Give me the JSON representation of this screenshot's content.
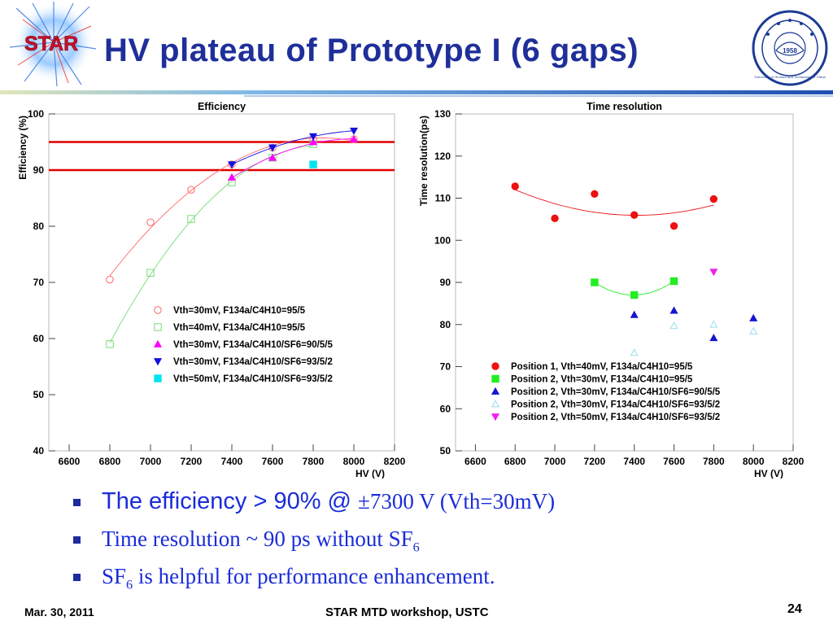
{
  "slide": {
    "title": "HV plateau of Prototype I (6 gaps)",
    "logo_text": "STAR",
    "seal_year": "1958",
    "seal_text": "University of Science and Technology of China",
    "accent": "#1f2f9a",
    "bullet_color": "#1a2cd8"
  },
  "bullets": [
    {
      "a": "The efficiency > 90% @ ",
      "b": "±7300 V (Vth=30mV)"
    },
    {
      "a": "Time resolution ~ 90 ps without SF",
      "sub": "6",
      "c": ""
    },
    {
      "a": "SF",
      "sub": "6",
      "c": " is helpful for performance enhancement."
    }
  ],
  "footer": {
    "date": "Mar. 30, 2011",
    "center": "STAR MTD workshop, USTC",
    "page": "24"
  },
  "chart_data": [
    {
      "type": "scatter",
      "title": "Efficiency",
      "xlabel": "HV (V)",
      "ylabel": "Efficiency (%)",
      "xlim": [
        6500,
        8200
      ],
      "ylim": [
        40,
        100
      ],
      "xticks": [
        6600,
        6800,
        7000,
        7200,
        7400,
        7600,
        7800,
        8000,
        8200
      ],
      "yticks": [
        40,
        50,
        60,
        70,
        80,
        90,
        100
      ],
      "grid": false,
      "legend_position": "lower-right",
      "reference_lines": [
        90,
        95
      ],
      "reference_color": "#e00000",
      "series": [
        {
          "name": "Vth=30mV, F134a/C4H10=95/5",
          "marker": "open-circle",
          "color": "#ff6666",
          "x": [
            6800,
            7000,
            7200,
            7400,
            7600,
            7800,
            8000
          ],
          "y": [
            70.5,
            80.7,
            86.5,
            91,
            94,
            95.5,
            95.5
          ],
          "fit": true
        },
        {
          "name": "Vth=40mV, F134a/C4H10=95/5",
          "marker": "open-square",
          "color": "#77dd77",
          "x": [
            6800,
            7000,
            7200,
            7400,
            7600,
            7800
          ],
          "y": [
            59,
            71.7,
            81.3,
            87.8,
            92.2,
            94.6
          ],
          "fit": true
        },
        {
          "name": "Vth=30mV, F134a/C4H10/SF6=90/5/5",
          "marker": "triangle-up",
          "color": "#ff00ff",
          "x": [
            7400,
            7600,
            7800,
            8000
          ],
          "y": [
            88.7,
            92.2,
            95,
            95.5
          ],
          "fit": true
        },
        {
          "name": "Vth=30mV, F134a/C4H10/SF6=93/5/2",
          "marker": "triangle-down",
          "color": "#1010e0",
          "x": [
            7400,
            7600,
            7800,
            8000
          ],
          "y": [
            91,
            94,
            96,
            97
          ],
          "fit": true
        },
        {
          "name": "Vth=50mV, F134a/C4H10/SF6=93/5/2",
          "marker": "square",
          "color": "#00e5f0",
          "x": [
            7800
          ],
          "y": [
            91
          ],
          "fit": false
        }
      ]
    },
    {
      "type": "scatter",
      "title": "Time resolution",
      "xlabel": "HV (V)",
      "ylabel": "Time resolution(ps)",
      "xlim": [
        6500,
        8200
      ],
      "ylim": [
        50,
        130
      ],
      "xticks": [
        6600,
        6800,
        7000,
        7200,
        7400,
        7600,
        7800,
        8000,
        8200
      ],
      "yticks": [
        50,
        60,
        70,
        80,
        90,
        100,
        110,
        120,
        130
      ],
      "grid": false,
      "legend_position": "lower-left",
      "series": [
        {
          "name": "Position 1, Vth=40mV, F134a/C4H10=95/5",
          "marker": "circle",
          "color": "#ee1111",
          "x": [
            6800,
            7000,
            7200,
            7400,
            7600,
            7800
          ],
          "y": [
            112.8,
            105.2,
            111,
            106,
            103.4,
            109.8
          ],
          "fit": true
        },
        {
          "name": "Position 2, Vth=30mV, F134a/C4H10=95/5",
          "marker": "square",
          "color": "#22ee22",
          "x": [
            7200,
            7400,
            7600
          ],
          "y": [
            90,
            87,
            90.3
          ],
          "fit": true
        },
        {
          "name": "Position 2, Vth=30mV, F134a/C4H10/SF6=90/5/5",
          "marker": "triangle-up",
          "color": "#1515d0",
          "x": [
            7400,
            7600,
            7800,
            8000
          ],
          "y": [
            82.3,
            83.3,
            76.8,
            81.5
          ],
          "fit": false
        },
        {
          "name": "Position 2, Vth=30mV, F134a/C4H10/SF6=93/5/2",
          "marker": "open-triangle-up",
          "color": "#99ddee",
          "x": [
            7400,
            7600,
            7800,
            8000
          ],
          "y": [
            73.3,
            79.7,
            80,
            78.4
          ],
          "fit": false
        },
        {
          "name": "Position 2, Vth=50mV, F134a/C4H10/SF6=93/5/2",
          "marker": "triangle-down",
          "color": "#ee22ee",
          "x": [
            7800
          ],
          "y": [
            92.5
          ],
          "fit": false
        }
      ]
    }
  ]
}
